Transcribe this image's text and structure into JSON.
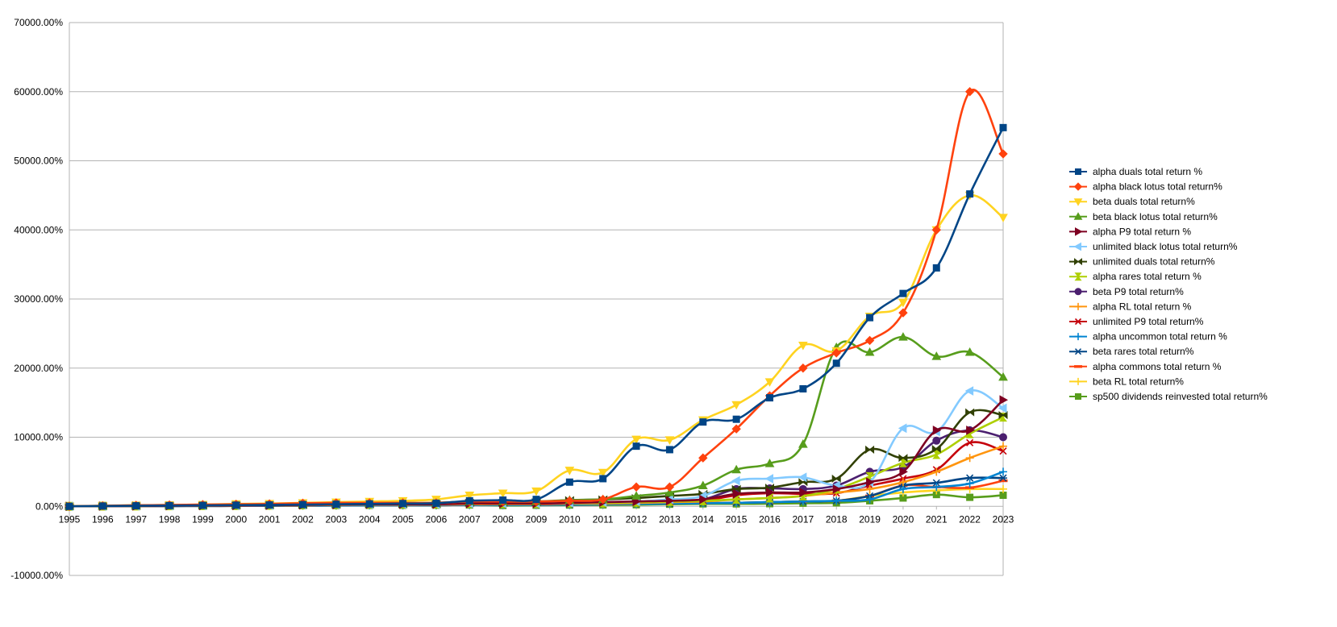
{
  "chart_data": {
    "type": "line",
    "title": "",
    "xlabel": "",
    "ylabel": "",
    "grid": true,
    "legend_position": "right",
    "ylim": [
      -10000,
      70000
    ],
    "y_ticks": [
      -10000,
      0,
      10000,
      20000,
      30000,
      40000,
      50000,
      60000,
      70000
    ],
    "y_tick_labels": [
      "-10000.00%",
      "0.00%",
      "10000.00%",
      "20000.00%",
      "30000.00%",
      "40000.00%",
      "50000.00%",
      "60000.00%",
      "70000.00%"
    ],
    "x": [
      "1995",
      "1996",
      "1997",
      "1998",
      "1999",
      "2000",
      "2001",
      "2002",
      "2003",
      "2004",
      "2005",
      "2006",
      "2007",
      "2008",
      "2009",
      "2010",
      "2011",
      "2012",
      "2013",
      "2014",
      "2015",
      "2016",
      "2017",
      "2018",
      "2019",
      "2020",
      "2021",
      "2022",
      "2023"
    ],
    "series": [
      {
        "name": "alpha duals total return %",
        "color": "#004586",
        "marker": "square",
        "values": [
          0,
          50,
          80,
          110,
          140,
          170,
          200,
          250,
          300,
          350,
          400,
          450,
          800,
          900,
          1000,
          3500,
          4000,
          8700,
          8200,
          12200,
          12600,
          15700,
          17000,
          20700,
          27300,
          30800,
          34500,
          45200,
          54800
        ]
      },
      {
        "name": "alpha black lotus total return%",
        "color": "#ff420e",
        "marker": "diamond",
        "values": [
          0,
          80,
          150,
          200,
          250,
          300,
          350,
          450,
          500,
          500,
          500,
          500,
          700,
          700,
          700,
          800,
          1000,
          2800,
          2800,
          7000,
          11200,
          16000,
          20000,
          22200,
          24000,
          28000,
          40000,
          60000,
          51000
        ]
      },
      {
        "name": "beta duals total return%",
        "color": "#ffd320",
        "marker": "triangle-down",
        "values": [
          0,
          100,
          150,
          200,
          250,
          350,
          400,
          500,
          600,
          700,
          800,
          1000,
          1600,
          1900,
          2200,
          5200,
          4900,
          9700,
          9600,
          12500,
          14700,
          18000,
          23300,
          22500,
          27500,
          29500,
          40000,
          45000,
          41800
        ]
      },
      {
        "name": "beta black lotus total return%",
        "color": "#579d1c",
        "marker": "triangle-up",
        "values": [
          0,
          50,
          100,
          150,
          200,
          250,
          300,
          350,
          400,
          450,
          500,
          500,
          700,
          700,
          700,
          900,
          1000,
          1500,
          2000,
          3000,
          5300,
          6200,
          9000,
          23000,
          22300,
          24500,
          21700,
          22300,
          18700
        ]
      },
      {
        "name": "alpha P9 total return %",
        "color": "#7e0021",
        "marker": "triangle-right",
        "values": [
          0,
          30,
          50,
          80,
          100,
          120,
          150,
          200,
          250,
          300,
          300,
          300,
          400,
          400,
          400,
          500,
          600,
          700,
          800,
          1000,
          1800,
          2000,
          2000,
          2500,
          3500,
          5000,
          11000,
          11000,
          15400
        ]
      },
      {
        "name": "unlimited black lotus total return%",
        "color": "#83caff",
        "marker": "triangle-left",
        "values": [
          0,
          30,
          50,
          80,
          100,
          120,
          150,
          200,
          250,
          300,
          300,
          300,
          400,
          400,
          400,
          500,
          600,
          700,
          1000,
          1500,
          3700,
          4000,
          4200,
          3000,
          3500,
          11300,
          10800,
          16700,
          14200
        ]
      },
      {
        "name": "unlimited duals total return%",
        "color": "#314004",
        "marker": "bowtie",
        "values": [
          0,
          30,
          50,
          80,
          100,
          120,
          150,
          200,
          250,
          300,
          300,
          300,
          500,
          500,
          600,
          900,
          1000,
          1200,
          1500,
          1800,
          2500,
          2700,
          3500,
          4000,
          8200,
          7000,
          8300,
          13600,
          13200
        ]
      },
      {
        "name": "alpha rares total return %",
        "color": "#aecf00",
        "marker": "hourglass",
        "values": [
          0,
          30,
          50,
          80,
          100,
          120,
          150,
          200,
          250,
          300,
          300,
          300,
          400,
          400,
          400,
          500,
          500,
          600,
          700,
          800,
          1000,
          1200,
          1500,
          2500,
          4300,
          6300,
          7500,
          10500,
          12900
        ]
      },
      {
        "name": "beta P9 total return%",
        "color": "#4b1f6f",
        "marker": "circle",
        "values": [
          0,
          30,
          50,
          80,
          100,
          120,
          150,
          200,
          250,
          300,
          300,
          300,
          400,
          400,
          400,
          500,
          600,
          700,
          800,
          1000,
          2500,
          2600,
          2500,
          3000,
          5000,
          5700,
          9500,
          11000,
          10000
        ]
      },
      {
        "name": "alpha RL total return %",
        "color": "#ff950e",
        "marker": "plus",
        "values": [
          0,
          20,
          40,
          60,
          80,
          100,
          120,
          150,
          200,
          250,
          250,
          250,
          300,
          300,
          300,
          400,
          400,
          500,
          600,
          700,
          1000,
          1200,
          1500,
          2000,
          2500,
          3500,
          5000,
          7000,
          8700
        ]
      },
      {
        "name": "unlimited P9 total return%",
        "color": "#c5000b",
        "marker": "x",
        "values": [
          0,
          20,
          40,
          60,
          80,
          100,
          120,
          150,
          200,
          250,
          250,
          250,
          300,
          300,
          300,
          400,
          500,
          600,
          700,
          800,
          1600,
          1900,
          1800,
          1900,
          3000,
          4000,
          5300,
          9200,
          8000
        ]
      },
      {
        "name": "alpha uncommon total return %",
        "color": "#0084d1",
        "marker": "plus",
        "values": [
          0,
          20,
          30,
          40,
          50,
          60,
          80,
          100,
          120,
          150,
          150,
          150,
          200,
          200,
          200,
          250,
          300,
          350,
          400,
          450,
          500,
          600,
          700,
          800,
          1000,
          2500,
          2800,
          3300,
          5000
        ]
      },
      {
        "name": "beta rares  total return%",
        "color": "#004586",
        "marker": "star",
        "values": [
          0,
          20,
          30,
          40,
          50,
          60,
          80,
          100,
          120,
          150,
          150,
          150,
          200,
          200,
          200,
          250,
          300,
          350,
          400,
          450,
          500,
          600,
          700,
          800,
          1500,
          3000,
          3400,
          4100,
          4100
        ]
      },
      {
        "name": "alpha commons total return %",
        "color": "#ff420e",
        "marker": "dash",
        "values": [
          0,
          20,
          30,
          40,
          50,
          60,
          80,
          100,
          120,
          150,
          150,
          150,
          200,
          200,
          200,
          250,
          300,
          350,
          400,
          450,
          500,
          600,
          700,
          800,
          1500,
          3000,
          2800,
          2700,
          3700
        ]
      },
      {
        "name": "beta RL total return%",
        "color": "#ffd320",
        "marker": "plus",
        "values": [
          0,
          20,
          30,
          40,
          50,
          60,
          80,
          100,
          120,
          150,
          150,
          150,
          200,
          200,
          200,
          250,
          300,
          350,
          400,
          450,
          500,
          600,
          700,
          800,
          1500,
          2000,
          2300,
          2500,
          2500
        ]
      },
      {
        "name": "sp500 dividends reinvested total return%",
        "color": "#579d1c",
        "marker": "square",
        "values": [
          0,
          30,
          60,
          100,
          130,
          160,
          150,
          130,
          110,
          140,
          150,
          170,
          200,
          120,
          150,
          180,
          200,
          230,
          300,
          350,
          350,
          380,
          450,
          500,
          800,
          1200,
          1700,
          1300,
          1600
        ]
      }
    ]
  }
}
